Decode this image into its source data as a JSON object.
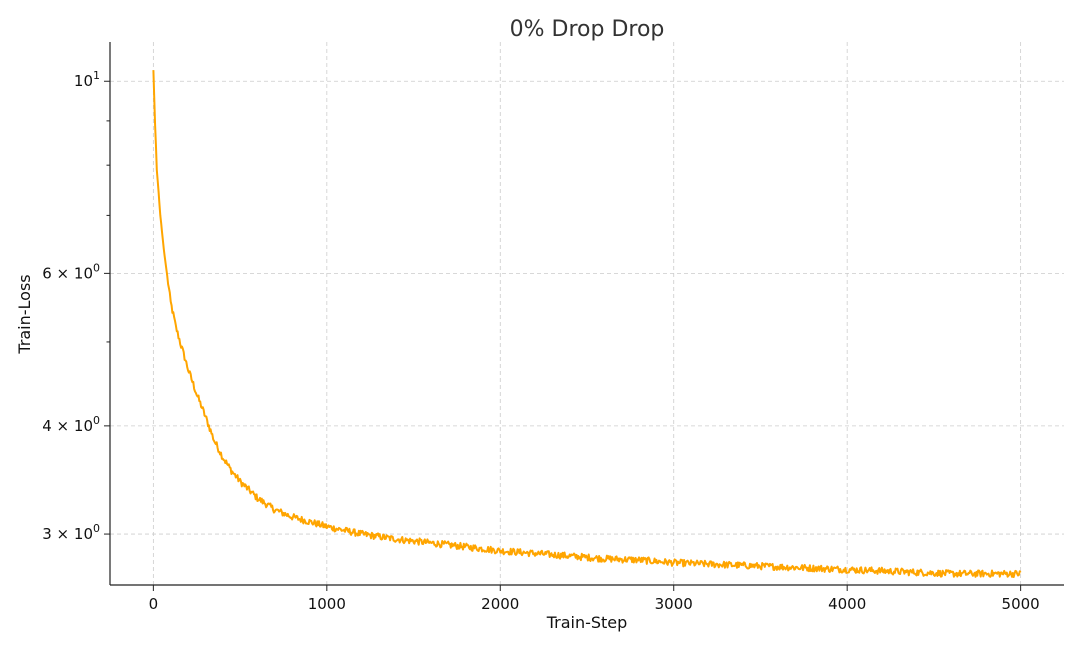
{
  "chart_data": {
    "type": "line",
    "title": "0% Drop Drop",
    "xlabel": "Train-Step",
    "ylabel": "Train-Loss",
    "xlim": [
      -250,
      5250
    ],
    "ylim": [
      2.62,
      11.1
    ],
    "yscale": "log",
    "grid": true,
    "color": "#FFA500",
    "x_ticks": [
      {
        "value": 0,
        "label": "0"
      },
      {
        "value": 1000,
        "label": "1000"
      },
      {
        "value": 2000,
        "label": "2000"
      },
      {
        "value": 3000,
        "label": "3000"
      },
      {
        "value": 4000,
        "label": "4000"
      },
      {
        "value": 5000,
        "label": "5000"
      }
    ],
    "y_major_ticks": [
      {
        "value": 3,
        "base": "3 × 10",
        "exp": "0"
      },
      {
        "value": 4,
        "base": "4 × 10",
        "exp": "0"
      },
      {
        "value": 6,
        "base": "6 × 10",
        "exp": "0"
      },
      {
        "value": 10,
        "base": "10",
        "exp": "1"
      }
    ],
    "y_minor_ticks": [
      5,
      7,
      8,
      9
    ],
    "series": [
      {
        "x": [
          0,
          10,
          20,
          40,
          60,
          80,
          100,
          130,
          160,
          200,
          250,
          300,
          350,
          400,
          450,
          500,
          600,
          700,
          800,
          900,
          1000,
          1200,
          1400,
          1600,
          1800,
          2000,
          2200,
          2400,
          2600,
          2800,
          3000,
          3200,
          3400,
          3600,
          3800,
          4000,
          4200,
          4400,
          4600,
          4800,
          5000
        ],
        "y": [
          10.3,
          8.9,
          7.9,
          7.0,
          6.4,
          5.95,
          5.55,
          5.2,
          4.95,
          4.65,
          4.35,
          4.1,
          3.85,
          3.68,
          3.55,
          3.45,
          3.3,
          3.2,
          3.14,
          3.1,
          3.06,
          3.0,
          2.96,
          2.93,
          2.9,
          2.87,
          2.85,
          2.83,
          2.81,
          2.8,
          2.78,
          2.77,
          2.76,
          2.75,
          2.74,
          2.73,
          2.72,
          2.71,
          2.7,
          2.7,
          2.7
        ]
      }
    ]
  }
}
